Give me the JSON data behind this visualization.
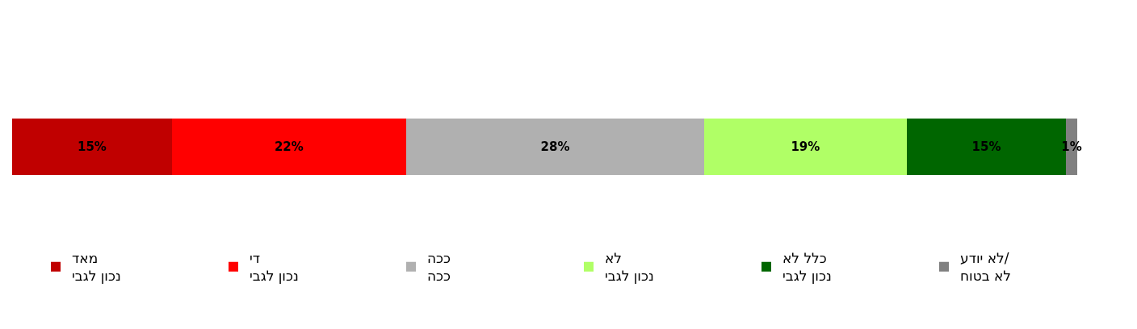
{
  "chart_data": {
    "type": "bar",
    "orientation": "horizontal",
    "stacked": true,
    "categories": [
      null
    ],
    "series": [
      {
        "name": "מאד\nנכון לגבי",
        "color": "#c00000",
        "values": [
          15
        ],
        "value_labels": [
          "15%"
        ]
      },
      {
        "name": "די\nנכון לגבי",
        "color": "#ff0000",
        "values": [
          22
        ],
        "value_labels": [
          "22%"
        ]
      },
      {
        "name": "ככה\nככה",
        "color": "#b0b0b0",
        "values": [
          28
        ],
        "value_labels": [
          "28%"
        ]
      },
      {
        "name": "לא\nנכון לגבי",
        "color": "#b0ff66",
        "values": [
          19
        ],
        "value_labels": [
          "19%"
        ]
      },
      {
        "name": "כלל לא\nנכון לגבי",
        "color": "#006600",
        "values": [
          15
        ],
        "value_labels": [
          "15%"
        ]
      },
      {
        "name": "לא יודע/\nלא בטוח",
        "color": "#808080",
        "values": [
          1
        ],
        "value_labels": [
          "1%"
        ]
      }
    ],
    "legend": "bottom"
  }
}
